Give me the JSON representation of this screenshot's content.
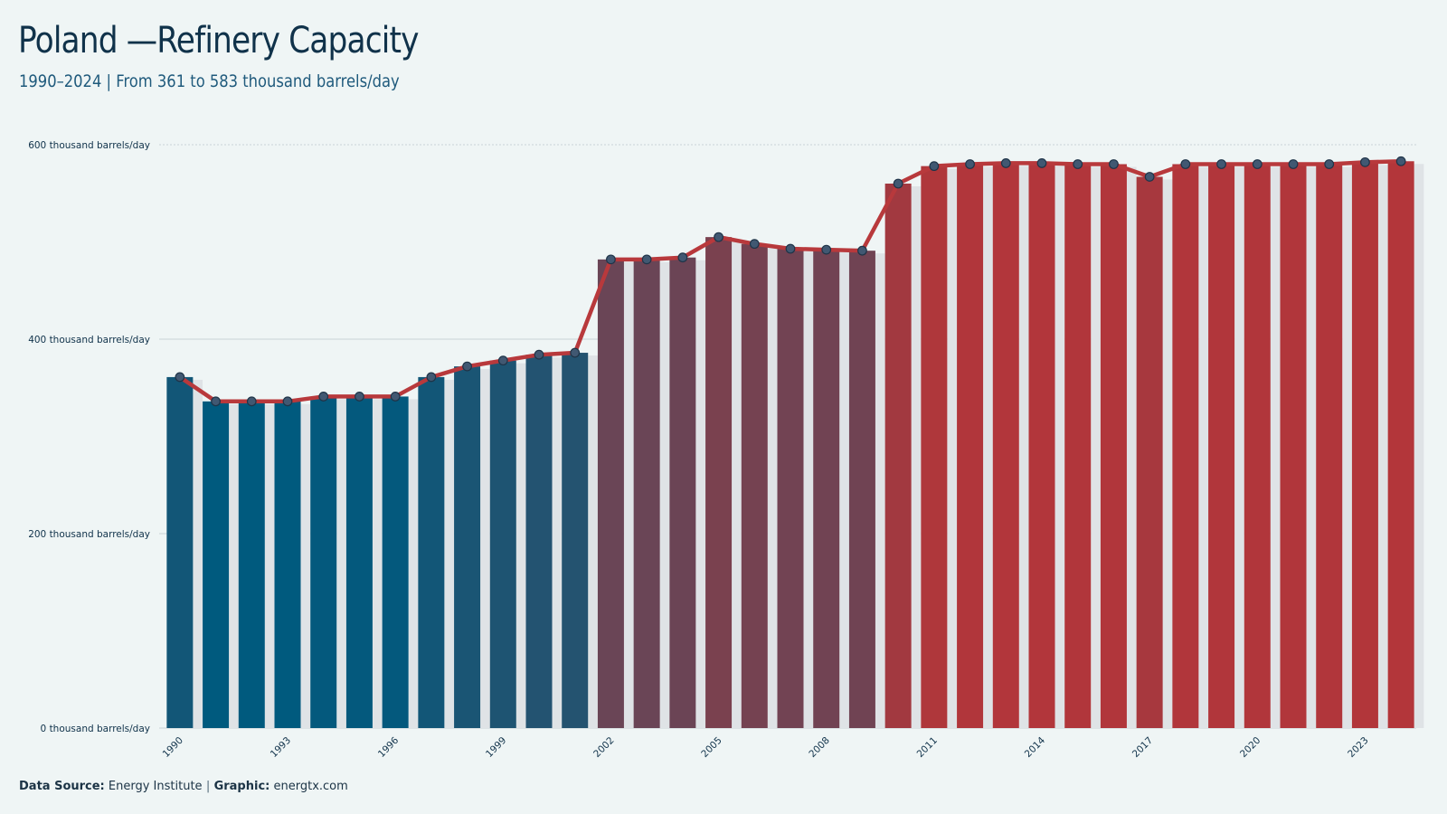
{
  "title": "Poland —Refinery Capacity",
  "subtitle": "1990–2024 | From 361 to 583 thousand barrels/day",
  "caption": {
    "source_label": "Data Source:",
    "source_value": "Energy Institute",
    "separator": "|",
    "graphic_label": "Graphic:",
    "graphic_value": "energtx.com"
  },
  "colors": {
    "background": "#eff5f5",
    "bar_low": "#005a7e",
    "bar_high": "#b3363a",
    "line": "#b8393c",
    "marker_fill": "#415872",
    "marker_stroke": "#1f3448",
    "grid": "#c9d3d8"
  },
  "chart_data": {
    "type": "bar",
    "overlay": "line",
    "title": "Poland —Refinery Capacity",
    "xlabel": "",
    "ylabel": "",
    "ylim": [
      0,
      600
    ],
    "y_ticks": [
      0,
      200,
      400,
      600
    ],
    "y_tick_labels": [
      "0 thousand barrels/day",
      "200 thousand barrels/day",
      "400 thousand barrels/day",
      "600 thousand barrels/day"
    ],
    "x_tick_labels": [
      "1990",
      "1993",
      "1996",
      "1999",
      "2002",
      "2005",
      "2008",
      "2011",
      "2014",
      "2017",
      "2020",
      "2023"
    ],
    "grid": true,
    "categories": [
      "1990",
      "1991",
      "1992",
      "1993",
      "1994",
      "1995",
      "1996",
      "1997",
      "1998",
      "1999",
      "2000",
      "2001",
      "2002",
      "2003",
      "2004",
      "2005",
      "2006",
      "2007",
      "2008",
      "2009",
      "2010",
      "2011",
      "2012",
      "2013",
      "2014",
      "2015",
      "2016",
      "2017",
      "2018",
      "2019",
      "2020",
      "2021",
      "2022",
      "2023",
      "2024"
    ],
    "values": [
      361,
      336,
      336,
      336,
      341,
      341,
      341,
      361,
      372,
      378,
      384,
      386,
      482,
      482,
      484,
      505,
      498,
      493,
      492,
      491,
      560,
      578,
      580,
      581,
      581,
      580,
      580,
      567,
      580,
      580,
      580,
      580,
      580,
      582,
      583
    ]
  }
}
